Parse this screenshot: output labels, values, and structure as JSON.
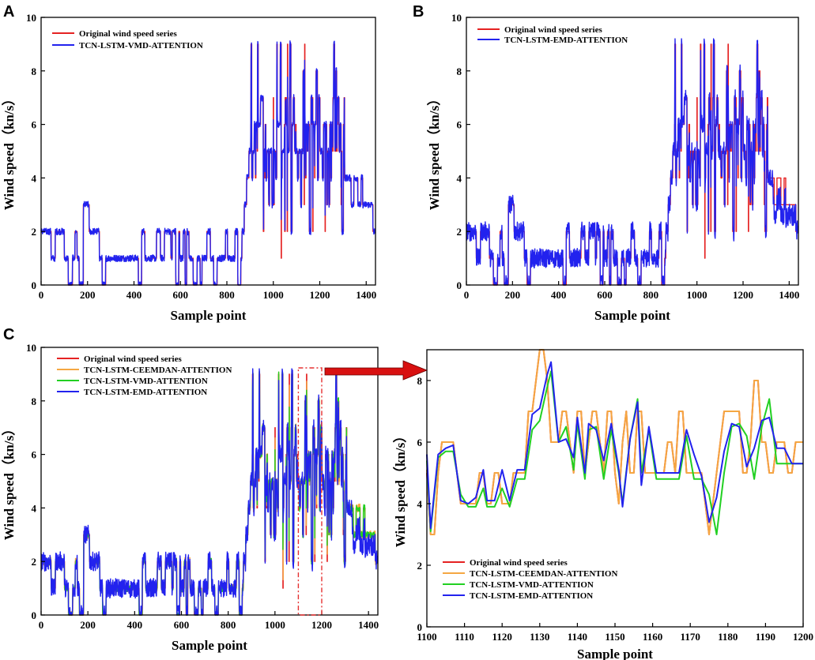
{
  "colors": {
    "original": "#e52222",
    "ceemdan": "#f5a742",
    "vmd": "#22d022",
    "emd": "#2222ee",
    "zoom_box": "#e53030",
    "arrow": "#d81010"
  },
  "panel_labels": [
    "A",
    "B",
    "C"
  ],
  "chart_data": [
    {
      "id": "A",
      "type": "line",
      "xlabel": "Sample point",
      "ylabel": "Wind speed（kn/s）",
      "xlim": [
        0,
        1440
      ],
      "ylim": [
        0,
        10
      ],
      "xticks": [
        0,
        200,
        400,
        600,
        800,
        1000,
        1200,
        1400
      ],
      "yticks": [
        0,
        2,
        4,
        6,
        8,
        10
      ],
      "legend_position": "top-left",
      "legend": [
        "Original wind speed series",
        "TCN-LSTM-VMD-ATTENTION"
      ],
      "series": [
        {
          "name": "Original wind speed series",
          "color_key": "original",
          "kind": "original"
        },
        {
          "name": "TCN-LSTM-VMD-ATTENTION",
          "color_key": "emd",
          "kind": "vmd"
        }
      ]
    },
    {
      "id": "B",
      "type": "line",
      "xlabel": "Sample point",
      "ylabel": "Wind speed（kn/s）",
      "xlim": [
        0,
        1440
      ],
      "ylim": [
        0,
        10
      ],
      "xticks": [
        0,
        200,
        400,
        600,
        800,
        1000,
        1200,
        1400
      ],
      "yticks": [
        0,
        2,
        4,
        6,
        8,
        10
      ],
      "legend_position": "top-left",
      "legend": [
        "Original wind speed series",
        "TCN-LSTM-EMD-ATTENTION"
      ],
      "series": [
        {
          "name": "Original wind speed series",
          "color_key": "original",
          "kind": "original"
        },
        {
          "name": "TCN-LSTM-EMD-ATTENTION",
          "color_key": "emd",
          "kind": "emd"
        }
      ]
    },
    {
      "id": "C",
      "type": "line",
      "xlabel": "Sample point",
      "ylabel": "Wind speed（kn/s）",
      "xlim": [
        0,
        1440
      ],
      "ylim": [
        0,
        10
      ],
      "xticks": [
        0,
        200,
        400,
        600,
        800,
        1000,
        1200,
        1400
      ],
      "yticks": [
        0,
        2,
        4,
        6,
        8,
        10
      ],
      "legend_position": "top-left",
      "legend": [
        "Original wind speed series",
        "TCN-LSTM-CEEMDAN-ATTENTION",
        "TCN-LSTM-VMD-ATTENTION",
        "TCN-LSTM-EMD-ATTENTION"
      ],
      "zoom_range": [
        1100,
        1200
      ],
      "series": [
        {
          "name": "Original wind speed series",
          "color_key": "original",
          "kind": "original"
        },
        {
          "name": "TCN-LSTM-CEEMDAN-ATTENTION",
          "color_key": "ceemdan",
          "kind": "ceemdan"
        },
        {
          "name": "TCN-LSTM-VMD-ATTENTION",
          "color_key": "vmd",
          "kind": "vmd"
        },
        {
          "name": "TCN-LSTM-EMD-ATTENTION",
          "color_key": "emd",
          "kind": "emd"
        }
      ]
    },
    {
      "id": "C-zoom",
      "type": "line",
      "xlabel": "Sample point",
      "ylabel": "Wind speed（kn/s）",
      "xlim": [
        1100,
        1200
      ],
      "ylim": [
        0,
        9
      ],
      "xticks": [
        1100,
        1110,
        1120,
        1130,
        1140,
        1150,
        1160,
        1170,
        1180,
        1190,
        1200
      ],
      "yticks": [
        0,
        2,
        4,
        6,
        8
      ],
      "legend_position": "bottom-left",
      "legend": [
        "Original wind speed series",
        "TCN-LSTM-CEEMDAN-ATTENTION",
        "TCN-LSTM-VMD-ATTENTION",
        "TCN-LSTM-EMD-ATTENTION"
      ],
      "series": [
        {
          "name": "Original wind speed series",
          "color_key": "original",
          "x": [
            1100,
            1101,
            1102,
            1103,
            1104,
            1105,
            1106,
            1107,
            1108,
            1109,
            1110,
            1111,
            1112,
            1113,
            1114,
            1115,
            1116,
            1117,
            1118,
            1119,
            1120,
            1121,
            1122,
            1123,
            1124,
            1125,
            1126,
            1127,
            1128,
            1129,
            1130,
            1131,
            1132,
            1133,
            1134,
            1135,
            1136,
            1137,
            1138,
            1139,
            1140,
            1141,
            1142,
            1143,
            1144,
            1145,
            1146,
            1147,
            1148,
            1149,
            1150,
            1151,
            1152,
            1153,
            1154,
            1155,
            1156,
            1157,
            1158,
            1159,
            1160,
            1161,
            1162,
            1163,
            1164,
            1165,
            1166,
            1167,
            1168,
            1169,
            1170,
            1171,
            1172,
            1173,
            1174,
            1175,
            1176,
            1177,
            1178,
            1179,
            1180,
            1181,
            1182,
            1183,
            1184,
            1185,
            1186,
            1187,
            1188,
            1189,
            1190,
            1191,
            1192,
            1193,
            1194,
            1195,
            1196,
            1197,
            1198,
            1199,
            1200
          ],
          "y": [
            5,
            3,
            3,
            5,
            6,
            6,
            6,
            6,
            5,
            4,
            4,
            4,
            4,
            4,
            5,
            5,
            4,
            4,
            5,
            5,
            4,
            4,
            4,
            5,
            5,
            5,
            5,
            7,
            7,
            8,
            9,
            9,
            8,
            6,
            6,
            6,
            7,
            7,
            6,
            5,
            7,
            7,
            5,
            6,
            7,
            7,
            6,
            5,
            7,
            7,
            5,
            4,
            6,
            7,
            5,
            5,
            7,
            7,
            5,
            5,
            5,
            5,
            5,
            5,
            6,
            6,
            5,
            7,
            7,
            5,
            5,
            5,
            5,
            5,
            4,
            3,
            4,
            5,
            6,
            7,
            7,
            7,
            7,
            7,
            5,
            5,
            6,
            8,
            8,
            6,
            6,
            5,
            5,
            6,
            6,
            6,
            5,
            5,
            6,
            6,
            6
          ]
        },
        {
          "name": "TCN-LSTM-CEEMDAN-ATTENTION",
          "color_key": "ceemdan",
          "x": [
            1100,
            1101,
            1102,
            1103,
            1104,
            1105,
            1106,
            1107,
            1108,
            1109,
            1110,
            1111,
            1112,
            1113,
            1114,
            1115,
            1116,
            1117,
            1118,
            1119,
            1120,
            1121,
            1122,
            1123,
            1124,
            1125,
            1126,
            1127,
            1128,
            1129,
            1130,
            1131,
            1132,
            1133,
            1134,
            1135,
            1136,
            1137,
            1138,
            1139,
            1140,
            1141,
            1142,
            1143,
            1144,
            1145,
            1146,
            1147,
            1148,
            1149,
            1150,
            1151,
            1152,
            1153,
            1154,
            1155,
            1156,
            1157,
            1158,
            1159,
            1160,
            1161,
            1162,
            1163,
            1164,
            1165,
            1166,
            1167,
            1168,
            1169,
            1170,
            1171,
            1172,
            1173,
            1174,
            1175,
            1176,
            1177,
            1178,
            1179,
            1180,
            1181,
            1182,
            1183,
            1184,
            1185,
            1186,
            1187,
            1188,
            1189,
            1190,
            1191,
            1192,
            1193,
            1194,
            1195,
            1196,
            1197,
            1198,
            1199,
            1200
          ],
          "y": [
            5.1,
            3,
            3,
            5,
            6,
            6,
            6,
            6,
            5,
            4,
            4,
            4,
            4,
            4,
            5,
            5,
            4,
            4,
            5,
            5,
            4,
            4,
            4,
            5,
            5,
            5,
            5,
            7,
            7,
            8,
            9,
            9,
            8,
            6,
            6,
            6,
            7,
            7,
            6,
            5,
            7,
            7,
            5,
            6,
            7,
            7,
            6,
            5,
            7,
            7,
            5,
            4,
            6,
            7,
            5,
            5,
            7,
            7,
            5,
            5,
            5,
            5,
            5,
            5,
            6,
            6,
            5,
            7,
            7,
            5,
            5,
            5,
            5,
            5,
            4,
            3,
            4,
            5,
            6,
            7,
            7,
            7,
            7,
            7,
            5,
            5,
            6,
            8,
            8,
            6,
            6,
            5,
            5,
            6,
            6,
            6,
            5,
            5,
            6,
            6,
            6
          ]
        },
        {
          "name": "TCN-LSTM-VMD-ATTENTION",
          "color_key": "vmd",
          "x": [
            1100,
            1101,
            1103,
            1105,
            1107,
            1109,
            1111,
            1113,
            1115,
            1116,
            1118,
            1120,
            1122,
            1124,
            1126,
            1128,
            1130,
            1132,
            1133,
            1135,
            1137,
            1139,
            1140,
            1142,
            1143,
            1145,
            1147,
            1149,
            1151,
            1152,
            1154,
            1156,
            1157,
            1159,
            1161,
            1163,
            1165,
            1167,
            1169,
            1171,
            1173,
            1175,
            1177,
            1179,
            1181,
            1183,
            1185,
            1187,
            1189,
            1191,
            1193,
            1195,
            1197,
            1199,
            1200
          ],
          "y": [
            5.4,
            3.1,
            5.5,
            5.7,
            5.7,
            4.3,
            3.9,
            3.9,
            4.5,
            3.9,
            3.9,
            4.5,
            3.9,
            4.8,
            4.8,
            6.4,
            6.7,
            7.8,
            8.3,
            6,
            6.5,
            5.1,
            6.6,
            4.8,
            6.4,
            6.5,
            4.8,
            6.4,
            5,
            4,
            6.1,
            7.4,
            5,
            6.4,
            4.8,
            4.8,
            4.8,
            4.8,
            6.2,
            4.8,
            4.8,
            4.3,
            3,
            5,
            6.5,
            6.6,
            6.2,
            4.8,
            6.5,
            7.4,
            5.3,
            5.3,
            5.3,
            5.3,
            5.3
          ]
        },
        {
          "name": "TCN-LSTM-EMD-ATTENTION",
          "color_key": "emd",
          "x": [
            1100,
            1101,
            1103,
            1105,
            1107,
            1109,
            1111,
            1113,
            1115,
            1116,
            1118,
            1120,
            1122,
            1124,
            1126,
            1128,
            1130,
            1132,
            1133,
            1135,
            1137,
            1139,
            1140,
            1142,
            1143,
            1145,
            1147,
            1149,
            1151,
            1152,
            1154,
            1156,
            1157,
            1159,
            1161,
            1163,
            1165,
            1167,
            1169,
            1171,
            1173,
            1175,
            1177,
            1179,
            1181,
            1183,
            1185,
            1187,
            1189,
            1191,
            1193,
            1195,
            1197,
            1199,
            1200
          ],
          "y": [
            5.6,
            3.2,
            5.6,
            5.8,
            5.9,
            4.1,
            4,
            4.2,
            5.1,
            4.1,
            4.1,
            5.1,
            4.1,
            5.1,
            5.1,
            6.9,
            7.1,
            8.2,
            8.6,
            6,
            6.1,
            5.5,
            6.8,
            5,
            6.6,
            6.4,
            5.4,
            6.6,
            5.1,
            3.9,
            6.1,
            7.3,
            4.6,
            6.5,
            5,
            5,
            5,
            5,
            6.4,
            5.6,
            4.9,
            3.4,
            4.2,
            5.7,
            6.6,
            6.5,
            5.2,
            5.8,
            6.7,
            6.8,
            5.8,
            5.8,
            5.3,
            5.3,
            5.3
          ]
        }
      ]
    }
  ]
}
